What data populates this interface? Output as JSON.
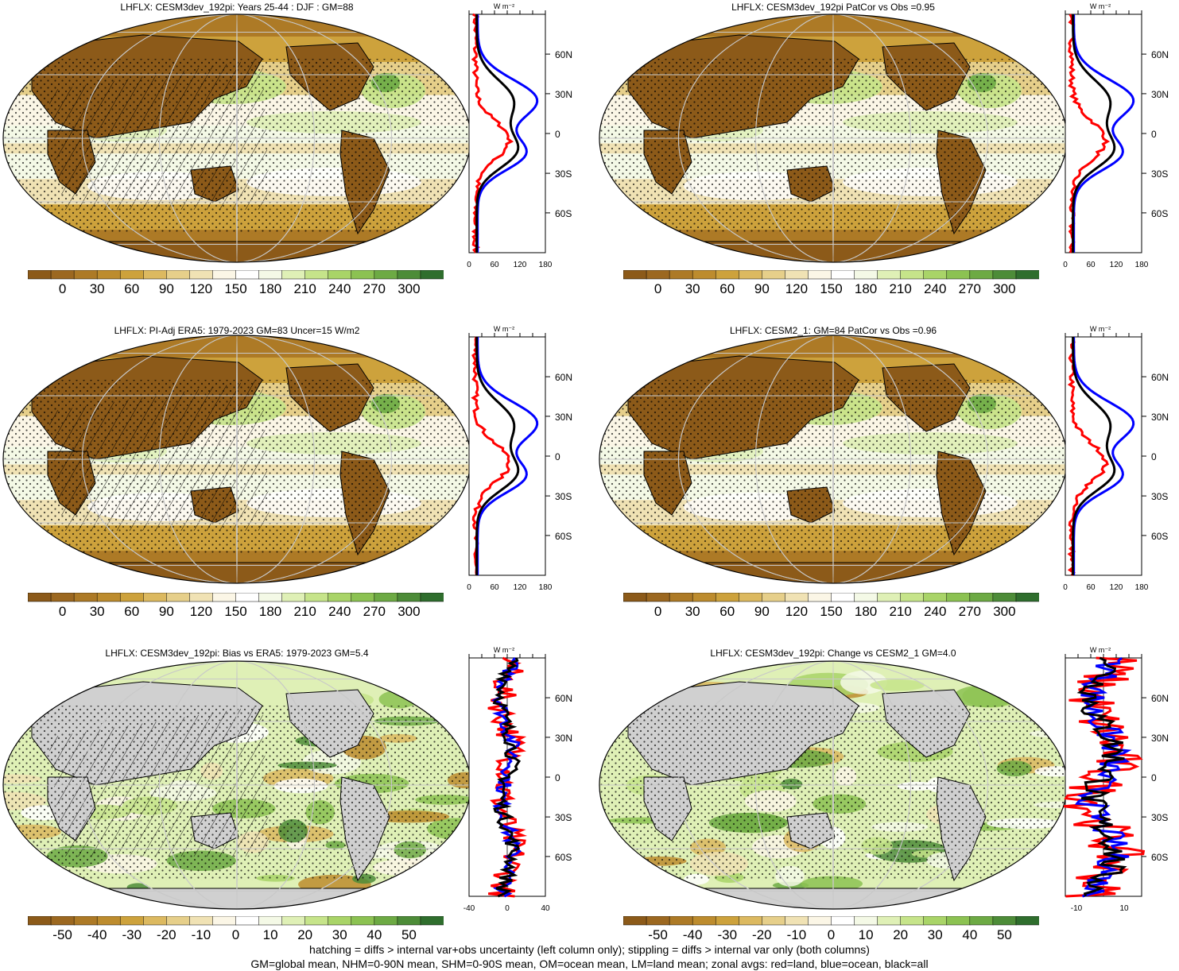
{
  "panels": [
    {
      "title": "LHFLX: CESM3dev_192pi: Years 25-44 : DJF : GM=88",
      "kind": "abs",
      "hatch": true,
      "zonal_ticks": [
        "0",
        "60",
        "120",
        "180"
      ],
      "zonal_unit": "W m⁻²"
    },
    {
      "title": "LHFLX: CESM3dev_192pi PatCor vs Obs =0.95",
      "kind": "abs",
      "hatch": false,
      "zonal_ticks": [
        "0",
        "60",
        "120",
        "180"
      ],
      "zonal_unit": "W m⁻²"
    },
    {
      "title": "LHFLX: PI-Adj ERA5: 1979-2023 GM=83 Uncer=15 W/m2",
      "kind": "abs",
      "hatch": true,
      "zonal_ticks": [
        "0",
        "60",
        "120",
        "180"
      ],
      "zonal_unit": "W m⁻²"
    },
    {
      "title": "LHFLX: CESM2_1: GM=84 PatCor vs Obs =0.96",
      "kind": "abs",
      "hatch": false,
      "zonal_ticks": [
        "0",
        "60",
        "120",
        "180"
      ],
      "zonal_unit": "W m⁻²"
    },
    {
      "title": "LHFLX: CESM3dev_192pi: Bias vs ERA5: 1979-2023 GM=5.4",
      "kind": "diff",
      "hatch": true,
      "zonal_ticks": [
        "-40",
        "0",
        "40"
      ],
      "zonal_unit": "W m⁻²"
    },
    {
      "title": "LHFLX: CESM3dev_192pi: Change vs CESM2_1 GM=4.0",
      "kind": "diff",
      "hatch": false,
      "zonal_ticks": [
        "-10",
        "10"
      ],
      "zonal_unit": "W m⁻²"
    }
  ],
  "lat_labels": [
    "60N",
    "30N",
    "0",
    "30S",
    "60S"
  ],
  "colorbar_abs": [
    "0",
    "30",
    "60",
    "90",
    "120",
    "150",
    "180",
    "210",
    "240",
    "270",
    "300"
  ],
  "colorbar_diff": [
    "-50",
    "-40",
    "-30",
    "-20",
    "-10",
    "0",
    "10",
    "20",
    "30",
    "40",
    "50"
  ],
  "palette": [
    "#8c5a19",
    "#9c6820",
    "#ad7a26",
    "#bd8c2e",
    "#cda23c",
    "#dcb960",
    "#e6cf8a",
    "#f0e2b4",
    "#fbf6e6",
    "#ffffff",
    "#f4f9e6",
    "#dff0b6",
    "#c6e48a",
    "#a9d468",
    "#8cc252",
    "#6daa44",
    "#4d8c38",
    "#2f6e2d"
  ],
  "zonal_colors": {
    "land": "#ff0000",
    "ocean": "#0000ff",
    "all": "#000000"
  },
  "footer": [
    "hatching = diffs > internal var+obs uncertainty (left column only); stippling = diffs > internal var only (both columns)",
    "GM=global mean, NHM=0-90N mean, SHM=0-90S mean, OM=ocean mean, LM=land mean; zonal avgs: red=land, blue=ocean, black=all"
  ]
}
